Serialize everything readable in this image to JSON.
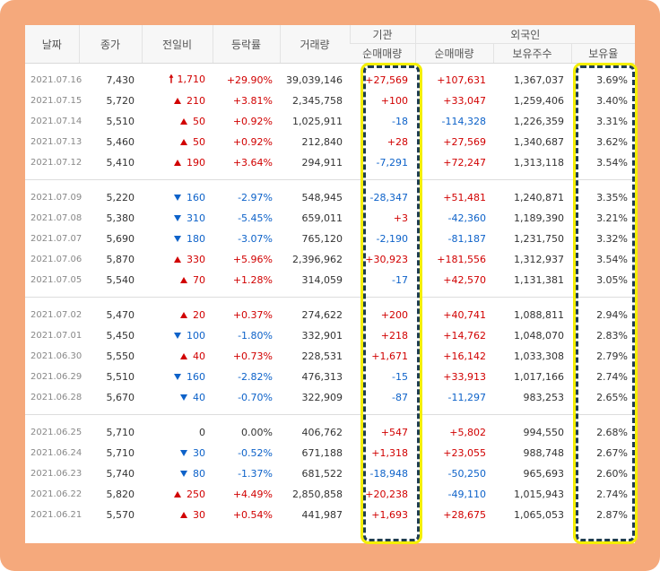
{
  "colors": {
    "frame": "#f5a97c",
    "up": "#d10000",
    "down": "#0d62c9",
    "highlight_border": "#1f3d50",
    "highlight_glow": "#f4ef00"
  },
  "header": {
    "date": "날짜",
    "close": "종가",
    "diff": "전일비",
    "rate": "등락률",
    "volume": "거래량",
    "institution": "기관",
    "inst_net": "순매매량",
    "foreign": "외국인",
    "foreign_net": "순매매량",
    "foreign_hold": "보유주수",
    "foreign_ratio": "보유율"
  },
  "groups": [
    [
      {
        "date": "2021.07.16",
        "close": "7,430",
        "dir": "limit-up",
        "diff": "1,710",
        "rate": "+29.90%",
        "volume": "39,039,146",
        "inst": "+27,569",
        "fnet": "+107,631",
        "fhold": "1,367,037",
        "fratio": "3.69%"
      },
      {
        "date": "2021.07.15",
        "close": "5,720",
        "dir": "up",
        "diff": "210",
        "rate": "+3.81%",
        "volume": "2,345,758",
        "inst": "+100",
        "fnet": "+33,047",
        "fhold": "1,259,406",
        "fratio": "3.40%"
      },
      {
        "date": "2021.07.14",
        "close": "5,510",
        "dir": "up",
        "diff": "50",
        "rate": "+0.92%",
        "volume": "1,025,911",
        "inst": "-18",
        "fnet": "-114,328",
        "fhold": "1,226,359",
        "fratio": "3.31%"
      },
      {
        "date": "2021.07.13",
        "close": "5,460",
        "dir": "up",
        "diff": "50",
        "rate": "+0.92%",
        "volume": "212,840",
        "inst": "+28",
        "fnet": "+27,569",
        "fhold": "1,340,687",
        "fratio": "3.62%"
      },
      {
        "date": "2021.07.12",
        "close": "5,410",
        "dir": "up",
        "diff": "190",
        "rate": "+3.64%",
        "volume": "294,911",
        "inst": "-7,291",
        "fnet": "+72,247",
        "fhold": "1,313,118",
        "fratio": "3.54%"
      }
    ],
    [
      {
        "date": "2021.07.09",
        "close": "5,220",
        "dir": "down",
        "diff": "160",
        "rate": "-2.97%",
        "volume": "548,945",
        "inst": "-28,347",
        "fnet": "+51,481",
        "fhold": "1,240,871",
        "fratio": "3.35%"
      },
      {
        "date": "2021.07.08",
        "close": "5,380",
        "dir": "down",
        "diff": "310",
        "rate": "-5.45%",
        "volume": "659,011",
        "inst": "+3",
        "fnet": "-42,360",
        "fhold": "1,189,390",
        "fratio": "3.21%"
      },
      {
        "date": "2021.07.07",
        "close": "5,690",
        "dir": "down",
        "diff": "180",
        "rate": "-3.07%",
        "volume": "765,120",
        "inst": "-2,190",
        "fnet": "-81,187",
        "fhold": "1,231,750",
        "fratio": "3.32%"
      },
      {
        "date": "2021.07.06",
        "close": "5,870",
        "dir": "up",
        "diff": "330",
        "rate": "+5.96%",
        "volume": "2,396,962",
        "inst": "+30,923",
        "fnet": "+181,556",
        "fhold": "1,312,937",
        "fratio": "3.54%"
      },
      {
        "date": "2021.07.05",
        "close": "5,540",
        "dir": "up",
        "diff": "70",
        "rate": "+1.28%",
        "volume": "314,059",
        "inst": "-17",
        "fnet": "+42,570",
        "fhold": "1,131,381",
        "fratio": "3.05%"
      }
    ],
    [
      {
        "date": "2021.07.02",
        "close": "5,470",
        "dir": "up",
        "diff": "20",
        "rate": "+0.37%",
        "volume": "274,622",
        "inst": "+200",
        "fnet": "+40,741",
        "fhold": "1,088,811",
        "fratio": "2.94%"
      },
      {
        "date": "2021.07.01",
        "close": "5,450",
        "dir": "down",
        "diff": "100",
        "rate": "-1.80%",
        "volume": "332,901",
        "inst": "+218",
        "fnet": "+14,762",
        "fhold": "1,048,070",
        "fratio": "2.83%"
      },
      {
        "date": "2021.06.30",
        "close": "5,550",
        "dir": "up",
        "diff": "40",
        "rate": "+0.73%",
        "volume": "228,531",
        "inst": "+1,671",
        "fnet": "+16,142",
        "fhold": "1,033,308",
        "fratio": "2.79%"
      },
      {
        "date": "2021.06.29",
        "close": "5,510",
        "dir": "down",
        "diff": "160",
        "rate": "-2.82%",
        "volume": "476,313",
        "inst": "-15",
        "fnet": "+33,913",
        "fhold": "1,017,166",
        "fratio": "2.74%"
      },
      {
        "date": "2021.06.28",
        "close": "5,670",
        "dir": "down",
        "diff": "40",
        "rate": "-0.70%",
        "volume": "322,909",
        "inst": "-87",
        "fnet": "-11,297",
        "fhold": "983,253",
        "fratio": "2.65%"
      }
    ],
    [
      {
        "date": "2021.06.25",
        "close": "5,710",
        "dir": "flat",
        "diff": "0",
        "rate": "0.00%",
        "volume": "406,762",
        "inst": "+547",
        "fnet": "+5,802",
        "fhold": "994,550",
        "fratio": "2.68%"
      },
      {
        "date": "2021.06.24",
        "close": "5,710",
        "dir": "down",
        "diff": "30",
        "rate": "-0.52%",
        "volume": "671,188",
        "inst": "+1,318",
        "fnet": "+23,055",
        "fhold": "988,748",
        "fratio": "2.67%"
      },
      {
        "date": "2021.06.23",
        "close": "5,740",
        "dir": "down",
        "diff": "80",
        "rate": "-1.37%",
        "volume": "681,522",
        "inst": "-18,948",
        "fnet": "-50,250",
        "fhold": "965,693",
        "fratio": "2.60%"
      },
      {
        "date": "2021.06.22",
        "close": "5,820",
        "dir": "up",
        "diff": "250",
        "rate": "+4.49%",
        "volume": "2,850,858",
        "inst": "+20,238",
        "fnet": "-49,110",
        "fhold": "1,015,943",
        "fratio": "2.74%"
      },
      {
        "date": "2021.06.21",
        "close": "5,570",
        "dir": "up",
        "diff": "30",
        "rate": "+0.54%",
        "volume": "441,987",
        "inst": "+1,693",
        "fnet": "+28,675",
        "fhold": "1,065,053",
        "fratio": "2.87%"
      }
    ]
  ]
}
